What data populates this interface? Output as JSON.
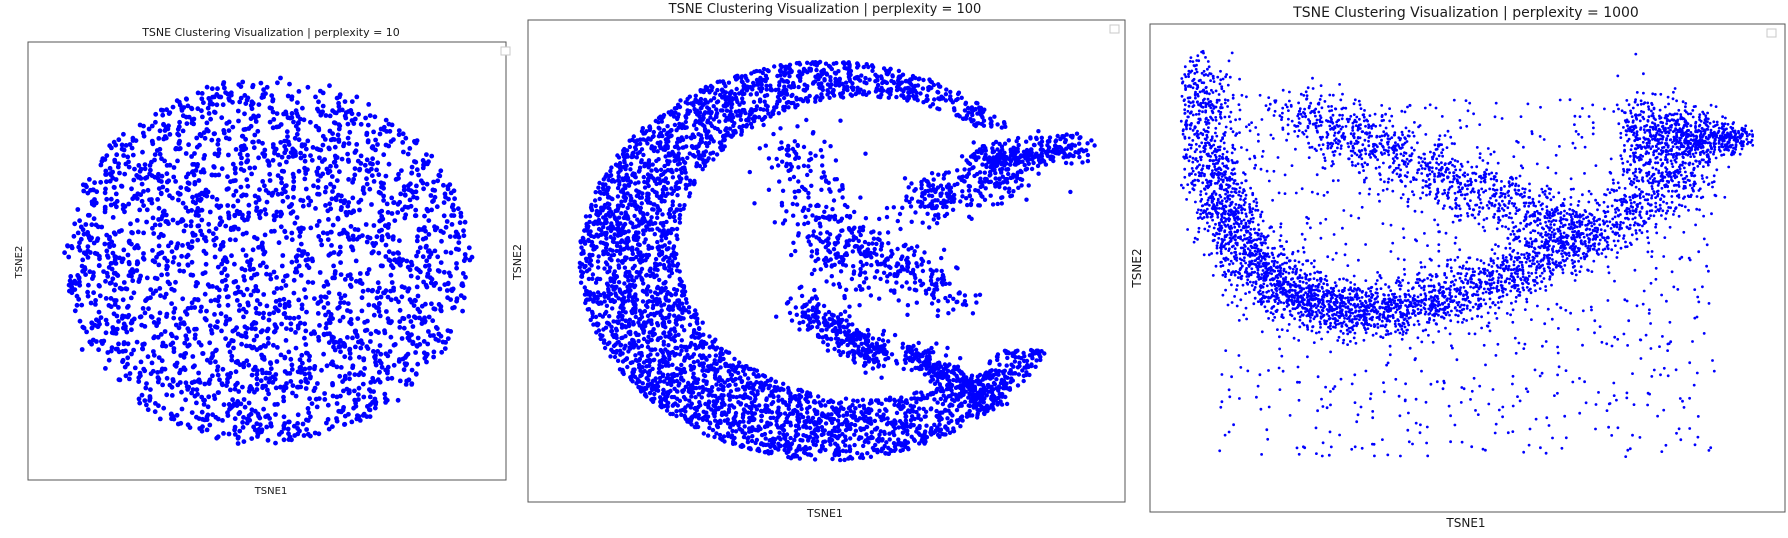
{
  "chart_data": [
    {
      "type": "scatter",
      "title": "TSNE Clustering Visualization | perplexity = 10",
      "xlabel": "TSNE1",
      "ylabel": "TSNE2",
      "xlim": [
        -100,
        100
      ],
      "ylim": [
        -100,
        100
      ],
      "ticks_visible": false,
      "grid": false,
      "legend": "top-right (empty)",
      "point_color": "#0000ff",
      "shape": "disc",
      "shape_params": {
        "cx": 0,
        "cy": 0,
        "rx": 92,
        "ry": 90
      },
      "point_count": 2600,
      "point_radius": 2.4
    },
    {
      "type": "scatter",
      "title": "TSNE Clustering Visualization | perplexity = 100",
      "xlabel": "TSNE1",
      "ylabel": "TSNE2",
      "xlim": [
        -100,
        100
      ],
      "ylim": [
        -100,
        100
      ],
      "ticks_visible": false,
      "grid": false,
      "legend": "top-right (empty)",
      "point_color": "#0000ff",
      "shape": "crescent",
      "shape_params": {
        "cx": 0,
        "cy": 0,
        "r_outer": 90,
        "r_inner": 68,
        "inner_offset": [
          14,
          6
        ]
      },
      "point_count": 5200,
      "point_radius": 2.2
    },
    {
      "type": "scatter",
      "title": "TSNE Clustering Visualization | perplexity = 1000",
      "xlabel": "TSNE1",
      "ylabel": "TSNE2",
      "xlim": [
        -100,
        100
      ],
      "ylim": [
        -100,
        100
      ],
      "ticks_visible": false,
      "grid": false,
      "legend": "top-right (empty)",
      "point_color": "#0000ff",
      "shape": "bowl",
      "shape_params": {
        "left": [
          -92,
          90
        ],
        "bottom": [
          -10,
          -92
        ],
        "right": [
          78,
          45
        ]
      },
      "point_count": 6000,
      "point_radius": 1.4
    }
  ]
}
